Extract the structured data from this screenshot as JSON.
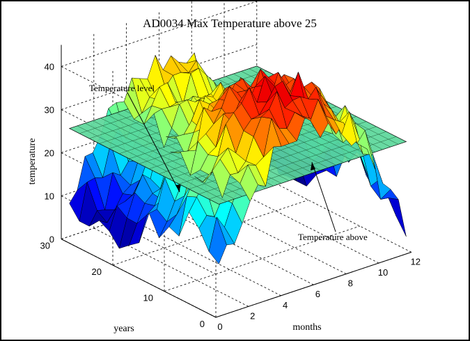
{
  "chart_data": {
    "type": "surface",
    "title": "AD0034 Max  Temperature above 25",
    "xlabel": "months",
    "ylabel": "years",
    "zlabel": "temperature",
    "xlim": [
      0,
      12
    ],
    "ylim": [
      0,
      30
    ],
    "zlim": [
      0,
      45
    ],
    "x_ticks": [
      "0",
      "2",
      "4",
      "6",
      "8",
      "10",
      "12"
    ],
    "y_ticks": [
      "0",
      "10",
      "20",
      "30"
    ],
    "z_ticks": [
      "0",
      "10",
      "20",
      "30",
      "40"
    ],
    "plane_level": 25,
    "grid": true,
    "annotations": [
      "Temperature level",
      "Temperature above"
    ],
    "colormap": "jet"
  }
}
